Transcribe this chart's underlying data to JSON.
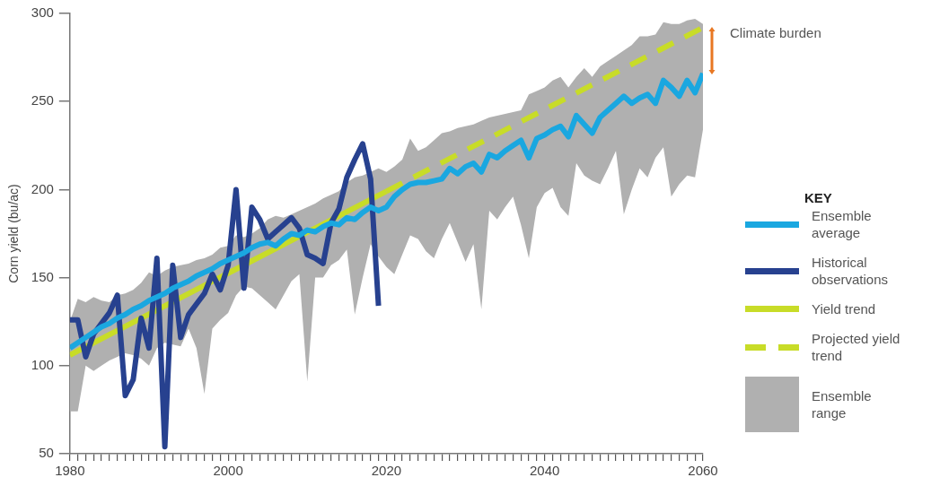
{
  "chart_data": {
    "type": "line",
    "ylabel": "Corn yield (bu/ac)",
    "legend_title": "KEY",
    "legend": "right",
    "annotations": [
      "Climate burden",
      "Ensemble range"
    ],
    "xlim": [
      1980,
      2060
    ],
    "xticks": [
      1980,
      {
        "value": 1981,
        "label": null
      },
      {
        "value": 1982,
        "label": null
      },
      {
        "value": 1983,
        "label": null
      },
      {
        "value": 1984,
        "label": null
      },
      {
        "value": 1985,
        "label": null
      },
      {
        "value": 1986,
        "label": null
      },
      {
        "value": 1987,
        "label": null
      },
      {
        "value": 1988,
        "label": null
      },
      {
        "value": 1989,
        "label": null
      },
      {
        "value": 1990,
        "label": null
      },
      {
        "value": 1991,
        "label": null
      },
      {
        "value": 1992,
        "label": null
      },
      {
        "value": 1993,
        "label": null
      },
      {
        "value": 1994,
        "label": null
      },
      {
        "value": 1995,
        "label": null
      },
      {
        "value": 1996,
        "label": null
      },
      {
        "value": 1997,
        "label": null
      },
      {
        "value": 1998,
        "label": null
      },
      {
        "value": 1999,
        "label": null
      },
      2000,
      {
        "value": 2001,
        "label": null
      },
      {
        "value": 2002,
        "label": null
      },
      {
        "value": 2003,
        "label": null
      },
      {
        "value": 2004,
        "label": null
      },
      {
        "value": 2005,
        "label": null
      },
      {
        "value": 2006,
        "label": null
      },
      {
        "value": 2007,
        "label": null
      },
      {
        "value": 2008,
        "label": null
      },
      {
        "value": 2009,
        "label": null
      },
      {
        "value": 2010,
        "label": null
      },
      {
        "value": 2011,
        "label": null
      },
      {
        "value": 2012,
        "label": null
      },
      {
        "value": 2013,
        "label": null
      },
      {
        "value": 2014,
        "label": null
      },
      {
        "value": 2015,
        "label": null
      },
      {
        "value": 2016,
        "label": null
      },
      {
        "value": 2017,
        "label": null
      },
      {
        "value": 2018,
        "label": null
      },
      {
        "value": 2019,
        "label": null
      },
      2020,
      {
        "value": 2021,
        "label": null
      },
      {
        "value": 2022,
        "label": null
      },
      {
        "value": 2023,
        "label": null
      },
      {
        "value": 2024,
        "label": null
      },
      {
        "value": 2025,
        "label": null
      },
      {
        "value": 2026,
        "label": null
      },
      {
        "value": 2027,
        "label": null
      },
      {
        "value": 2028,
        "label": null
      },
      {
        "value": 2029,
        "label": null
      },
      {
        "value": 2030,
        "label": null
      },
      {
        "value": 2031,
        "label": null
      },
      {
        "value": 2032,
        "label": null
      },
      {
        "value": 2033,
        "label": null
      },
      {
        "value": 2034,
        "label": null
      },
      {
        "value": 2035,
        "label": null
      },
      {
        "value": 2036,
        "label": null
      },
      {
        "value": 2037,
        "label": null
      },
      {
        "value": 2038,
        "label": null
      },
      {
        "value": 2039,
        "label": null
      },
      2040,
      {
        "value": 2041,
        "label": null
      },
      {
        "value": 2042,
        "label": null
      },
      {
        "value": 2043,
        "label": null
      },
      {
        "value": 2044,
        "label": null
      },
      {
        "value": 2045,
        "label": null
      },
      {
        "value": 2046,
        "label": null
      },
      {
        "value": 2047,
        "label": null
      },
      {
        "value": 2048,
        "label": null
      },
      {
        "value": 2049,
        "label": null
      },
      {
        "value": 2050,
        "label": null
      },
      {
        "value": 2051,
        "label": null
      },
      {
        "value": 2052,
        "label": null
      },
      {
        "value": 2053,
        "label": null
      },
      {
        "value": 2054,
        "label": null
      },
      {
        "value": 2055,
        "label": null
      },
      {
        "value": 2056,
        "label": null
      },
      {
        "value": 2057,
        "label": null
      },
      {
        "value": 2058,
        "label": null
      },
      {
        "value": 2059,
        "label": null
      },
      2060
    ],
    "ylim": [
      50,
      300
    ],
    "yticks": [
      50,
      100,
      150,
      200,
      250,
      300
    ],
    "grid": false,
    "marker": "none",
    "series": [
      {
        "name": "Ensemble average",
        "color": "#1aa7e0",
        "line_style": "solid",
        "x": [
          1980,
          1981,
          1982,
          1983,
          1984,
          1985,
          1986,
          1987,
          1988,
          1989,
          1990,
          1991,
          1992,
          1993,
          1994,
          1995,
          1996,
          1997,
          1998,
          1999,
          2000,
          2001,
          2002,
          2003,
          2004,
          2005,
          2006,
          2007,
          2008,
          2009,
          2010,
          2011,
          2012,
          2013,
          2014,
          2015,
          2016,
          2017,
          2018,
          2019,
          2020,
          2021,
          2022,
          2023,
          2024,
          2025,
          2026,
          2027,
          2028,
          2029,
          2030,
          2031,
          2032,
          2033,
          2034,
          2035,
          2036,
          2037,
          2038,
          2039,
          2040,
          2041,
          2042,
          2043,
          2044,
          2045,
          2046,
          2047,
          2048,
          2049,
          2050,
          2051,
          2052,
          2053,
          2054,
          2055,
          2056,
          2057,
          2058,
          2059,
          2060
        ],
        "values": [
          110,
          113,
          116,
          119,
          122,
          124,
          127,
          129,
          132,
          134,
          137,
          139,
          141,
          144,
          146,
          148,
          151,
          153,
          155,
          158,
          160,
          162,
          164,
          167,
          169,
          170,
          168,
          172,
          175,
          174,
          177,
          176,
          179,
          181,
          180,
          184,
          183,
          187,
          190,
          188,
          190,
          196,
          200,
          203,
          204,
          204,
          205,
          206,
          212,
          209,
          213,
          215,
          210,
          220,
          218,
          222,
          225,
          228,
          218,
          229,
          231,
          234,
          236,
          230,
          242,
          237,
          232,
          241,
          245,
          249,
          253,
          249,
          252,
          254,
          249,
          262,
          258,
          253,
          262,
          255,
          266
        ],
        "upper": [
          125,
          138,
          136,
          139,
          137,
          136,
          140,
          141,
          143,
          147,
          153,
          151,
          154,
          156,
          157,
          158,
          160,
          161,
          163,
          167,
          168,
          174,
          173,
          175,
          178,
          183,
          185,
          184,
          186,
          188,
          190,
          192,
          195,
          197,
          199,
          204,
          207,
          208,
          210,
          212,
          210,
          213,
          217,
          229,
          222,
          224,
          228,
          232,
          233,
          235,
          236,
          237,
          239,
          241,
          242,
          243,
          244,
          245,
          254,
          256,
          258,
          262,
          264,
          258,
          264,
          269,
          264,
          270,
          273,
          276,
          279,
          282,
          287,
          287,
          288,
          295,
          294,
          294,
          296,
          297,
          294
        ],
        "lower": [
          74,
          74,
          100,
          97,
          100,
          103,
          105,
          107,
          106,
          104,
          100,
          110,
          113,
          112,
          111,
          121,
          110,
          84,
          121,
          126,
          130,
          140,
          145,
          144,
          140,
          136,
          132,
          140,
          148,
          152,
          91,
          150,
          150,
          157,
          160,
          166,
          129,
          150,
          169,
          162,
          156,
          152,
          163,
          174,
          172,
          165,
          161,
          172,
          181,
          170,
          159,
          169,
          132,
          188,
          183,
          190,
          196,
          180,
          161,
          190,
          198,
          201,
          190,
          185,
          215,
          208,
          205,
          203,
          212,
          222,
          186,
          200,
          212,
          207,
          218,
          224,
          196,
          203,
          208,
          207,
          234
        ]
      },
      {
        "name": "Historical observations",
        "color": "#27418f",
        "line_style": "solid",
        "x": [
          1980,
          1981,
          1982,
          1983,
          1984,
          1985,
          1986,
          1987,
          1988,
          1989,
          1990,
          1991,
          1992,
          1993,
          1994,
          1995,
          1996,
          1997,
          1998,
          1999,
          2000,
          2001,
          2002,
          2003,
          2004,
          2005,
          2006,
          2007,
          2008,
          2009,
          2010,
          2011,
          2012,
          2013,
          2014,
          2015,
          2016,
          2017,
          2018,
          2019
        ],
        "values": [
          126,
          126,
          105,
          118,
          124,
          130,
          140,
          83,
          92,
          127,
          110,
          161,
          54,
          157,
          116,
          129,
          135,
          141,
          152,
          143,
          157,
          200,
          144,
          190,
          183,
          172,
          176,
          180,
          184,
          178,
          163,
          161,
          158,
          181,
          189,
          207,
          217,
          226,
          206,
          134
        ]
      },
      {
        "name": "Yield trend",
        "color": "#c8dc28",
        "line_style": "solid",
        "x": [
          1980,
          2020
        ],
        "values": [
          106,
          199
        ]
      },
      {
        "name": "Projected yield trend",
        "color": "#c8dc28",
        "line_style": "dashed",
        "x": [
          2020,
          2060
        ],
        "values": [
          199,
          292
        ]
      }
    ]
  }
}
